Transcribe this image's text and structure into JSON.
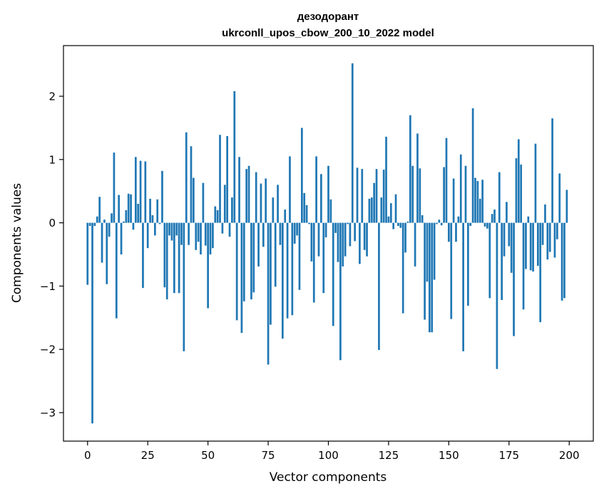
{
  "chart_data": {
    "type": "bar",
    "title_line1": "дезодорант",
    "title_line2": "ukrconll_upos_cbow_200_10_2022 model",
    "xlabel": "Vector components",
    "ylabel": "Components values",
    "xlim": [
      -10,
      210
    ],
    "ylim": [
      -3.45,
      2.8
    ],
    "x_ticks": [
      0,
      25,
      50,
      75,
      100,
      125,
      150,
      175,
      200
    ],
    "y_ticks": [
      -3,
      -2,
      -1,
      0,
      1,
      2
    ],
    "y_tick_labels": [
      "−3",
      "−2",
      "−1",
      "0",
      "1",
      "2"
    ],
    "grid": false,
    "bar_color": "#1f77b4",
    "values": [
      -0.98,
      -0.05,
      -3.17,
      -0.05,
      0.1,
      0.41,
      -0.63,
      0.05,
      -0.97,
      -0.22,
      0.15,
      1.11,
      -1.51,
      0.44,
      -0.5,
      0.02,
      0.2,
      0.46,
      0.45,
      -0.11,
      1.04,
      0.3,
      0.98,
      -1.03,
      0.97,
      -0.4,
      0.38,
      0.12,
      -0.2,
      0.37,
      -0.02,
      0.82,
      -1.02,
      -1.21,
      -0.2,
      -0.28,
      -1.11,
      -0.2,
      -1.11,
      -0.35,
      -2.03,
      1.43,
      -0.35,
      1.21,
      0.71,
      -0.43,
      -0.3,
      -0.5,
      0.63,
      -0.36,
      -1.35,
      -0.5,
      -0.4,
      0.26,
      0.2,
      1.39,
      -0.17,
      0.6,
      1.37,
      -0.22,
      0.4,
      2.08,
      -1.54,
      1.04,
      -1.74,
      -1.24,
      0.85,
      0.9,
      -1.21,
      -1.1,
      0.8,
      -0.69,
      0.62,
      -0.38,
      0.7,
      -2.24,
      -1.61,
      0.4,
      -1.01,
      0.6,
      -0.35,
      -1.83,
      0.21,
      -1.51,
      1.05,
      -1.46,
      -0.33,
      -0.2,
      -1.06,
      1.5,
      0.47,
      0.28,
      -0.02,
      -0.61,
      -1.26,
      1.05,
      -0.53,
      0.77,
      -1.11,
      -0.23,
      0.9,
      0.37,
      -1.63,
      -0.16,
      -0.62,
      -2.17,
      -0.69,
      -0.53,
      -0.02,
      -0.37,
      2.52,
      -0.29,
      0.87,
      -0.65,
      0.85,
      -0.43,
      -0.53,
      0.38,
      0.4,
      0.63,
      0.85,
      -2.01,
      0.4,
      0.84,
      1.36,
      0.1,
      0.31,
      -0.1,
      0.45,
      -0.05,
      -0.08,
      -1.43,
      -0.47,
      0.02,
      1.7,
      0.9,
      -0.69,
      1.41,
      0.86,
      0.12,
      -1.53,
      -0.93,
      -1.73,
      -1.73,
      -0.9,
      -0.02,
      0.05,
      -0.04,
      0.88,
      1.34,
      -0.3,
      -1.52,
      0.7,
      -0.3,
      0.1,
      1.08,
      -2.03,
      0.9,
      -1.31,
      -0.05,
      1.81,
      0.71,
      0.66,
      0.38,
      0.68,
      -0.06,
      -0.09,
      -1.19,
      0.14,
      0.21,
      -2.31,
      0.8,
      -1.22,
      -0.53,
      0.33,
      -0.37,
      -0.79,
      -1.79,
      1.02,
      1.32,
      0.92,
      -1.37,
      -0.73,
      0.1,
      -0.75,
      -0.77,
      1.25,
      -0.68,
      -1.57,
      -0.35,
      0.29,
      -0.58,
      -0.46,
      1.65,
      -0.55,
      -0.26,
      0.78,
      -1.23,
      -1.19,
      0.52
    ]
  }
}
